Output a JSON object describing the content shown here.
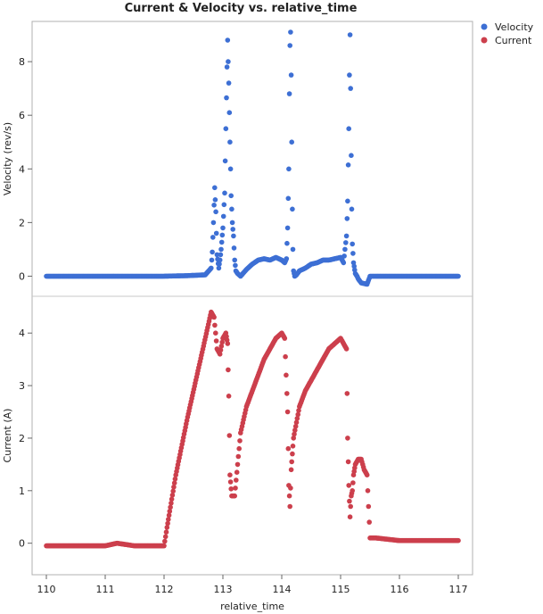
{
  "chart_data": {
    "type": "scatter",
    "title": "Current & Velocity vs. relative_time",
    "xlabel": "relative_time",
    "xlim": [
      109.85,
      117.2
    ],
    "xticks": [
      110,
      111,
      112,
      113,
      114,
      115,
      116,
      117
    ],
    "grid": false,
    "legend_position": "top-right",
    "legend": [
      {
        "name": "Velocity",
        "color": "#3d6fd4"
      },
      {
        "name": "Current",
        "color": "#cc3f4c"
      }
    ],
    "panels": [
      {
        "series": "Velocity",
        "ylabel": "Velocity (rev/s)",
        "ylim": [
          -0.75,
          9.5
        ],
        "yticks": [
          0,
          2,
          4,
          6,
          8
        ],
        "color": "#3d6fd4",
        "x": [
          110.0,
          110.5,
          111.0,
          111.5,
          112.0,
          112.4,
          112.7,
          112.8,
          112.82,
          112.84,
          112.86,
          112.88,
          112.9,
          112.93,
          112.95,
          112.97,
          113.0,
          113.03,
          113.05,
          113.07,
          113.08,
          113.1,
          113.12,
          113.14,
          113.16,
          113.18,
          113.2,
          113.22,
          113.25,
          113.3,
          113.4,
          113.5,
          113.6,
          113.7,
          113.8,
          113.9,
          114.0,
          114.05,
          114.08,
          114.1,
          114.12,
          114.13,
          114.14,
          114.15,
          114.16,
          114.17,
          114.18,
          114.19,
          114.2,
          114.22,
          114.25,
          114.3,
          114.4,
          114.5,
          114.6,
          114.7,
          114.8,
          114.9,
          115.0,
          115.05,
          115.1,
          115.12,
          115.14,
          115.15,
          115.16,
          115.17,
          115.18,
          115.19,
          115.2,
          115.22,
          115.25,
          115.28,
          115.3,
          115.35,
          115.45,
          115.5,
          115.6,
          115.8,
          116.0,
          116.5,
          117.0
        ],
        "y": [
          0.0,
          0.0,
          0.0,
          0.0,
          0.0,
          0.02,
          0.05,
          0.3,
          0.9,
          2.0,
          3.3,
          2.4,
          0.8,
          0.3,
          0.6,
          1.0,
          1.8,
          3.1,
          5.5,
          7.8,
          8.8,
          7.2,
          5.0,
          3.0,
          2.0,
          1.5,
          0.6,
          0.2,
          0.1,
          0.0,
          0.25,
          0.45,
          0.6,
          0.65,
          0.6,
          0.7,
          0.6,
          0.5,
          0.65,
          1.8,
          4.0,
          6.8,
          8.6,
          9.1,
          7.5,
          5.0,
          2.5,
          1.0,
          0.2,
          0.0,
          0.05,
          0.2,
          0.3,
          0.45,
          0.5,
          0.6,
          0.6,
          0.65,
          0.7,
          0.5,
          1.5,
          2.8,
          5.5,
          7.5,
          9.0,
          7.0,
          4.5,
          2.5,
          1.2,
          0.5,
          0.1,
          0.0,
          -0.1,
          -0.25,
          -0.3,
          0.0,
          0.0,
          0.0,
          0.0,
          0.0,
          0.0
        ]
      },
      {
        "series": "Current",
        "ylabel": "Current (A)",
        "ylim": [
          -0.6,
          4.7
        ],
        "yticks": [
          0,
          1,
          2,
          3,
          4
        ],
        "color": "#cc3f4c",
        "x": [
          110.0,
          110.5,
          111.0,
          111.2,
          111.5,
          111.8,
          112.0,
          112.05,
          112.2,
          112.4,
          112.6,
          112.8,
          112.85,
          112.9,
          112.95,
          113.0,
          113.05,
          113.08,
          113.1,
          113.12,
          113.15,
          113.2,
          113.25,
          113.3,
          113.4,
          113.5,
          113.6,
          113.7,
          113.8,
          113.9,
          114.0,
          114.05,
          114.1,
          114.12,
          114.14,
          114.16,
          114.18,
          114.2,
          114.3,
          114.4,
          114.5,
          114.6,
          114.7,
          114.8,
          114.9,
          115.0,
          115.1,
          115.12,
          115.14,
          115.16,
          115.18,
          115.2,
          115.22,
          115.25,
          115.3,
          115.35,
          115.4,
          115.45,
          115.5,
          115.6,
          116.0,
          116.5,
          117.0
        ],
        "y": [
          -0.05,
          -0.05,
          -0.05,
          0.0,
          -0.05,
          -0.05,
          -0.05,
          0.3,
          1.3,
          2.4,
          3.4,
          4.4,
          4.3,
          3.7,
          3.6,
          3.9,
          4.0,
          3.8,
          2.8,
          1.3,
          0.9,
          0.9,
          1.5,
          2.1,
          2.6,
          2.9,
          3.2,
          3.5,
          3.7,
          3.9,
          4.0,
          3.9,
          2.5,
          1.1,
          0.7,
          1.4,
          1.7,
          2.0,
          2.6,
          2.9,
          3.1,
          3.3,
          3.5,
          3.7,
          3.8,
          3.9,
          3.7,
          2.0,
          1.1,
          0.5,
          0.9,
          1.0,
          1.3,
          1.5,
          1.6,
          1.6,
          1.4,
          1.3,
          0.1,
          0.1,
          0.05,
          0.05,
          0.05
        ]
      }
    ]
  }
}
